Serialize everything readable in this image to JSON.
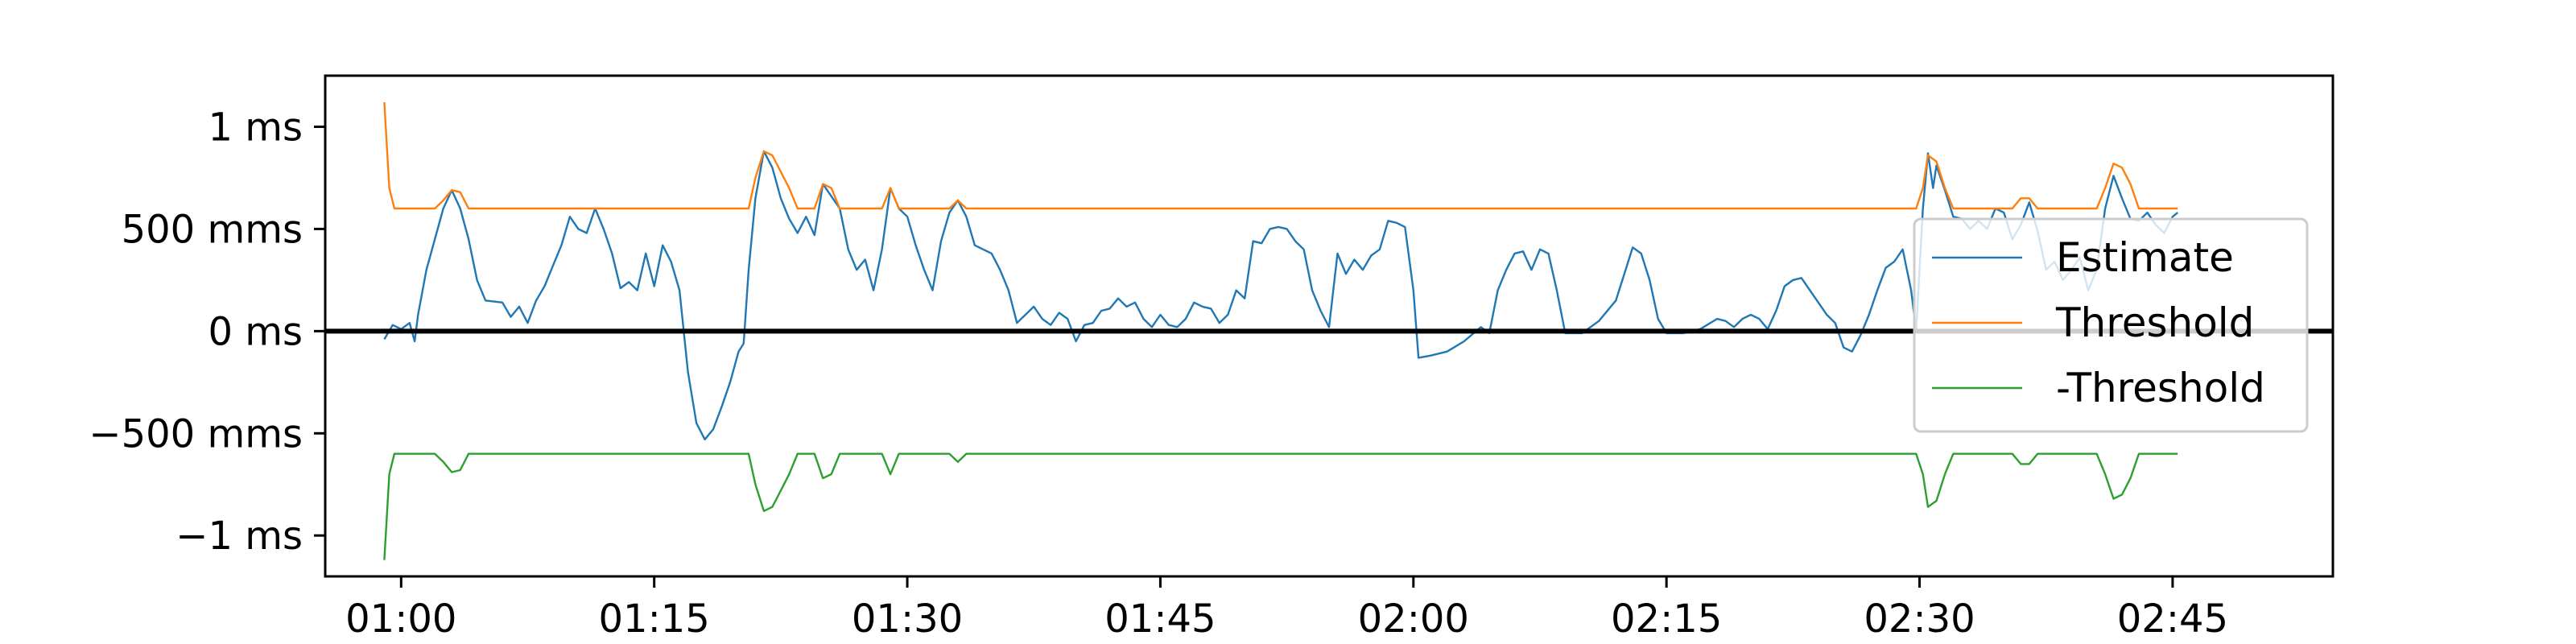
{
  "chart_data": {
    "type": "line",
    "title": "",
    "xlabel": "",
    "ylabel": "",
    "x_unit": "minutes",
    "xlim": [
      55.5,
      174.5
    ],
    "ylim": [
      -1200,
      1250
    ],
    "grid": false,
    "legend_position": "center-right",
    "x_ticks": [
      {
        "value": 60,
        "label": "01:00"
      },
      {
        "value": 75,
        "label": "01:15"
      },
      {
        "value": 90,
        "label": "01:30"
      },
      {
        "value": 105,
        "label": "01:45"
      },
      {
        "value": 120,
        "label": "02:00"
      },
      {
        "value": 135,
        "label": "02:15"
      },
      {
        "value": 150,
        "label": "02:30"
      },
      {
        "value": 165,
        "label": "02:45"
      }
    ],
    "y_ticks": [
      {
        "value": 1000,
        "label": "1 ms"
      },
      {
        "value": 500,
        "label": "500 mms"
      },
      {
        "value": 0,
        "label": "0 ms"
      },
      {
        "value": -500,
        "label": "−500 mms"
      },
      {
        "value": -1000,
        "label": "−1 ms"
      }
    ],
    "zero_line": 0,
    "series": [
      {
        "name": "Estimate",
        "color": "#1f77b4",
        "points": [
          [
            59.0,
            -40
          ],
          [
            59.5,
            30
          ],
          [
            60.0,
            10
          ],
          [
            60.5,
            40
          ],
          [
            60.8,
            -50
          ],
          [
            61.0,
            80
          ],
          [
            61.5,
            300
          ],
          [
            62.0,
            450
          ],
          [
            62.5,
            600
          ],
          [
            63.0,
            690
          ],
          [
            63.5,
            600
          ],
          [
            64.0,
            450
          ],
          [
            64.5,
            250
          ],
          [
            65.0,
            150
          ],
          [
            66.0,
            140
          ],
          [
            66.5,
            70
          ],
          [
            67.0,
            120
          ],
          [
            67.5,
            40
          ],
          [
            68.0,
            150
          ],
          [
            68.5,
            220
          ],
          [
            69.0,
            320
          ],
          [
            69.5,
            420
          ],
          [
            70.0,
            560
          ],
          [
            70.5,
            500
          ],
          [
            71.0,
            480
          ],
          [
            71.5,
            600
          ],
          [
            72.0,
            500
          ],
          [
            72.5,
            380
          ],
          [
            73.0,
            210
          ],
          [
            73.5,
            240
          ],
          [
            74.0,
            200
          ],
          [
            74.5,
            380
          ],
          [
            75.0,
            220
          ],
          [
            75.5,
            420
          ],
          [
            76.0,
            340
          ],
          [
            76.5,
            200
          ],
          [
            77.0,
            -200
          ],
          [
            77.5,
            -450
          ],
          [
            78.0,
            -530
          ],
          [
            78.5,
            -480
          ],
          [
            79.0,
            -370
          ],
          [
            79.5,
            -250
          ],
          [
            80.0,
            -100
          ],
          [
            80.3,
            -60
          ],
          [
            80.6,
            300
          ],
          [
            81.0,
            650
          ],
          [
            81.5,
            880
          ],
          [
            82.0,
            800
          ],
          [
            82.5,
            650
          ],
          [
            83.0,
            550
          ],
          [
            83.5,
            480
          ],
          [
            84.0,
            560
          ],
          [
            84.5,
            470
          ],
          [
            85.0,
            720
          ],
          [
            85.5,
            660
          ],
          [
            86.0,
            600
          ],
          [
            86.5,
            400
          ],
          [
            87.0,
            300
          ],
          [
            87.5,
            350
          ],
          [
            88.0,
            200
          ],
          [
            88.5,
            400
          ],
          [
            89.0,
            700
          ],
          [
            89.5,
            600
          ],
          [
            90.0,
            560
          ],
          [
            90.5,
            420
          ],
          [
            91.0,
            300
          ],
          [
            91.5,
            200
          ],
          [
            92.0,
            440
          ],
          [
            92.5,
            580
          ],
          [
            93.0,
            640
          ],
          [
            93.5,
            560
          ],
          [
            94.0,
            420
          ],
          [
            95.0,
            380
          ],
          [
            95.5,
            300
          ],
          [
            96.0,
            200
          ],
          [
            96.5,
            40
          ],
          [
            97.0,
            80
          ],
          [
            97.5,
            120
          ],
          [
            98.0,
            60
          ],
          [
            98.5,
            30
          ],
          [
            99.0,
            90
          ],
          [
            99.5,
            60
          ],
          [
            100.0,
            -50
          ],
          [
            100.5,
            30
          ],
          [
            101.0,
            40
          ],
          [
            101.5,
            100
          ],
          [
            102.0,
            110
          ],
          [
            102.5,
            160
          ],
          [
            103.0,
            120
          ],
          [
            103.5,
            140
          ],
          [
            104.0,
            60
          ],
          [
            104.5,
            20
          ],
          [
            105.0,
            80
          ],
          [
            105.5,
            30
          ],
          [
            106.0,
            20
          ],
          [
            106.5,
            60
          ],
          [
            107.0,
            140
          ],
          [
            107.5,
            120
          ],
          [
            108.0,
            110
          ],
          [
            108.5,
            40
          ],
          [
            109.0,
            80
          ],
          [
            109.5,
            200
          ],
          [
            110.0,
            160
          ],
          [
            110.5,
            440
          ],
          [
            111.0,
            430
          ],
          [
            111.5,
            500
          ],
          [
            112.0,
            510
          ],
          [
            112.5,
            500
          ],
          [
            113.0,
            440
          ],
          [
            113.5,
            400
          ],
          [
            114.0,
            200
          ],
          [
            114.5,
            100
          ],
          [
            115.0,
            20
          ],
          [
            115.5,
            380
          ],
          [
            116.0,
            280
          ],
          [
            116.5,
            350
          ],
          [
            117.0,
            300
          ],
          [
            117.5,
            370
          ],
          [
            118.0,
            400
          ],
          [
            118.5,
            540
          ],
          [
            119.0,
            530
          ],
          [
            119.5,
            510
          ],
          [
            120.0,
            200
          ],
          [
            120.3,
            -130
          ],
          [
            121.0,
            -120
          ],
          [
            122.0,
            -100
          ],
          [
            123.0,
            -50
          ],
          [
            124.0,
            20
          ],
          [
            124.5,
            -10
          ],
          [
            125.0,
            200
          ],
          [
            125.5,
            300
          ],
          [
            126.0,
            380
          ],
          [
            126.5,
            390
          ],
          [
            127.0,
            300
          ],
          [
            127.5,
            400
          ],
          [
            128.0,
            380
          ],
          [
            128.5,
            200
          ],
          [
            129.0,
            -10
          ],
          [
            130.0,
            -10
          ],
          [
            131.0,
            50
          ],
          [
            132.0,
            150
          ],
          [
            132.5,
            280
          ],
          [
            133.0,
            410
          ],
          [
            133.5,
            380
          ],
          [
            134.0,
            250
          ],
          [
            134.5,
            60
          ],
          [
            135.0,
            -10
          ],
          [
            136.0,
            -10
          ],
          [
            137.0,
            10
          ],
          [
            138.0,
            60
          ],
          [
            138.5,
            50
          ],
          [
            139.0,
            20
          ],
          [
            139.5,
            60
          ],
          [
            140.0,
            80
          ],
          [
            140.5,
            60
          ],
          [
            141.0,
            10
          ],
          [
            141.5,
            100
          ],
          [
            142.0,
            220
          ],
          [
            142.5,
            250
          ],
          [
            143.0,
            260
          ],
          [
            143.5,
            200
          ],
          [
            144.0,
            140
          ],
          [
            144.5,
            80
          ],
          [
            145.0,
            40
          ],
          [
            145.5,
            -80
          ],
          [
            146.0,
            -100
          ],
          [
            146.5,
            -20
          ],
          [
            147.0,
            80
          ],
          [
            147.5,
            200
          ],
          [
            148.0,
            310
          ],
          [
            148.5,
            340
          ],
          [
            149.0,
            400
          ],
          [
            149.5,
            200
          ],
          [
            149.8,
            0
          ],
          [
            150.2,
            600
          ],
          [
            150.5,
            870
          ],
          [
            150.8,
            700
          ],
          [
            151.0,
            810
          ],
          [
            151.5,
            690
          ],
          [
            152.0,
            560
          ],
          [
            152.5,
            550
          ],
          [
            153.0,
            500
          ],
          [
            153.5,
            540
          ],
          [
            154.0,
            500
          ],
          [
            154.5,
            600
          ],
          [
            155.0,
            580
          ],
          [
            155.5,
            450
          ],
          [
            156.0,
            520
          ],
          [
            156.5,
            630
          ],
          [
            157.0,
            490
          ],
          [
            157.5,
            300
          ],
          [
            158.0,
            340
          ],
          [
            158.5,
            250
          ],
          [
            159.0,
            300
          ],
          [
            159.5,
            360
          ],
          [
            160.0,
            200
          ],
          [
            160.5,
            300
          ],
          [
            161.0,
            600
          ],
          [
            161.5,
            760
          ],
          [
            162.0,
            650
          ],
          [
            162.5,
            550
          ],
          [
            163.0,
            540
          ],
          [
            163.5,
            580
          ],
          [
            164.0,
            520
          ],
          [
            164.5,
            480
          ],
          [
            165.0,
            560
          ],
          [
            165.3,
            580
          ]
        ]
      },
      {
        "name": "Threshold",
        "color": "#ff7f0e",
        "points": [
          [
            59.0,
            1120
          ],
          [
            59.3,
            700
          ],
          [
            59.6,
            600
          ],
          [
            62.0,
            600
          ],
          [
            62.5,
            640
          ],
          [
            63.0,
            690
          ],
          [
            63.5,
            680
          ],
          [
            64.0,
            600
          ],
          [
            80.6,
            600
          ],
          [
            81.0,
            750
          ],
          [
            81.5,
            880
          ],
          [
            82.0,
            860
          ],
          [
            82.5,
            780
          ],
          [
            83.0,
            700
          ],
          [
            83.5,
            600
          ],
          [
            84.5,
            600
          ],
          [
            85.0,
            720
          ],
          [
            85.5,
            700
          ],
          [
            86.0,
            600
          ],
          [
            88.5,
            600
          ],
          [
            89.0,
            700
          ],
          [
            89.5,
            600
          ],
          [
            92.5,
            600
          ],
          [
            93.0,
            640
          ],
          [
            93.5,
            600
          ],
          [
            149.8,
            600
          ],
          [
            150.2,
            700
          ],
          [
            150.5,
            860
          ],
          [
            151.0,
            830
          ],
          [
            151.5,
            700
          ],
          [
            152.0,
            600
          ],
          [
            155.5,
            600
          ],
          [
            156.0,
            650
          ],
          [
            156.5,
            650
          ],
          [
            157.0,
            600
          ],
          [
            160.5,
            600
          ],
          [
            161.0,
            700
          ],
          [
            161.5,
            820
          ],
          [
            162.0,
            800
          ],
          [
            162.5,
            720
          ],
          [
            163.0,
            600
          ],
          [
            165.3,
            600
          ]
        ]
      },
      {
        "name": "-Threshold",
        "color": "#2ca02c",
        "points": [
          [
            59.0,
            -1120
          ],
          [
            59.3,
            -700
          ],
          [
            59.6,
            -600
          ],
          [
            62.0,
            -600
          ],
          [
            62.5,
            -640
          ],
          [
            63.0,
            -690
          ],
          [
            63.5,
            -680
          ],
          [
            64.0,
            -600
          ],
          [
            80.6,
            -600
          ],
          [
            81.0,
            -750
          ],
          [
            81.5,
            -880
          ],
          [
            82.0,
            -860
          ],
          [
            82.5,
            -780
          ],
          [
            83.0,
            -700
          ],
          [
            83.5,
            -600
          ],
          [
            84.5,
            -600
          ],
          [
            85.0,
            -720
          ],
          [
            85.5,
            -700
          ],
          [
            86.0,
            -600
          ],
          [
            88.5,
            -600
          ],
          [
            89.0,
            -700
          ],
          [
            89.5,
            -600
          ],
          [
            92.5,
            -600
          ],
          [
            93.0,
            -640
          ],
          [
            93.5,
            -600
          ],
          [
            149.8,
            -600
          ],
          [
            150.2,
            -700
          ],
          [
            150.5,
            -860
          ],
          [
            151.0,
            -830
          ],
          [
            151.5,
            -700
          ],
          [
            152.0,
            -600
          ],
          [
            155.5,
            -600
          ],
          [
            156.0,
            -650
          ],
          [
            156.5,
            -650
          ],
          [
            157.0,
            -600
          ],
          [
            160.5,
            -600
          ],
          [
            161.0,
            -700
          ],
          [
            161.5,
            -820
          ],
          [
            162.0,
            -800
          ],
          [
            162.5,
            -720
          ],
          [
            163.0,
            -600
          ],
          [
            165.3,
            -600
          ]
        ]
      }
    ]
  }
}
